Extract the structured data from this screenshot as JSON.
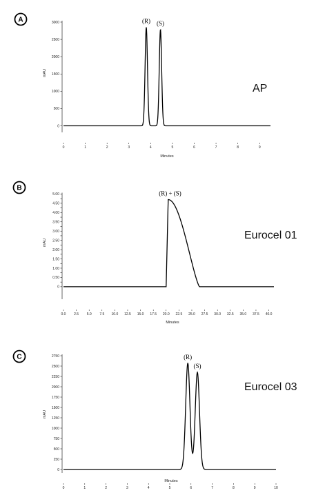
{
  "chart_data": [
    {
      "type": "line",
      "panel_letter": "A",
      "tag": "AP",
      "ylabel": "mAU",
      "xlabel": "Minutes",
      "xlim": [
        0,
        9.5
      ],
      "ylim": [
        -150,
        3200
      ],
      "xticks": [
        0,
        1,
        2,
        3,
        4,
        5,
        6,
        7,
        8,
        9
      ],
      "xtick_labels": [
        "0",
        "1",
        "2",
        "3",
        "4",
        "5",
        "6",
        "7",
        "8",
        "9"
      ],
      "yticks": [
        0,
        500,
        1000,
        1500,
        2000,
        2500,
        3000
      ],
      "ytick_labels": [
        "0",
        "500",
        "1000",
        "1500",
        "2000",
        "2500",
        "3000"
      ],
      "peaks": [
        {
          "label": "(R)",
          "x": 3.8,
          "y": 2850,
          "width": 0.055
        },
        {
          "label": "(S)",
          "x": 4.45,
          "y": 2780,
          "width": 0.055
        }
      ],
      "baseline": 0
    },
    {
      "type": "line",
      "panel_letter": "B",
      "tag": "Eurocel 01",
      "ylabel": "mAU",
      "xlabel": "Minutes",
      "xlim": [
        0,
        41
      ],
      "ylim": [
        -0.6,
        5.5
      ],
      "xticks": [
        0,
        2.5,
        5,
        7.5,
        10,
        12.5,
        15,
        17.5,
        20,
        22.5,
        25,
        27.5,
        30,
        32.5,
        35,
        37.5,
        40
      ],
      "xtick_labels": [
        "0.0",
        "2.5",
        "5.0",
        "7.5",
        "10.0",
        "12.5",
        "15.0",
        "17.5",
        "20.0",
        "22.5",
        "25.0",
        "27.5",
        "30.0",
        "32.5",
        "35.0",
        "37.5",
        "40.0"
      ],
      "yticks": [
        0,
        0.25,
        0.5,
        0.75,
        1.0,
        1.25,
        1.5,
        1.75,
        2.0,
        2.25,
        2.5,
        2.75,
        3.0,
        3.25,
        3.5,
        3.75,
        4.0,
        4.25,
        4.5,
        4.75,
        5.0
      ],
      "ytick_labels": [
        "0",
        "",
        "0.50",
        "",
        "1.00",
        "",
        "1.50",
        "",
        "2.00",
        "",
        "2.50",
        "",
        "3.00",
        "",
        "3.50",
        "",
        "4.00",
        "",
        "4.50",
        "",
        "5.00"
      ],
      "peaks": [
        {
          "label": "(R) + (S)",
          "x": 20.5,
          "y": 4.7,
          "shape": "tailing",
          "start": 20.0,
          "end": 26.5
        }
      ],
      "baseline": 0
    },
    {
      "type": "line",
      "panel_letter": "C",
      "tag": "Eurocel 03",
      "ylabel": "mAU",
      "xlabel": "Minutes",
      "xlim": [
        0,
        10
      ],
      "ylim": [
        -50,
        2850
      ],
      "xticks": [
        0,
        1,
        2,
        3,
        4,
        5,
        6,
        7,
        8,
        9,
        10
      ],
      "xtick_labels": [
        "0",
        "1",
        "2",
        "3",
        "4",
        "5",
        "6",
        "7",
        "8",
        "9",
        "10"
      ],
      "yticks": [
        0,
        250,
        500,
        750,
        1000,
        1250,
        1500,
        1750,
        2000,
        2250,
        2500,
        2750
      ],
      "ytick_labels": [
        "0",
        "250",
        "500",
        "750",
        "1000",
        "1250",
        "1500",
        "1750",
        "2000",
        "2250",
        "2500",
        "2750"
      ],
      "peaks": [
        {
          "label": "(R)",
          "x": 5.85,
          "y": 2570,
          "width": 0.1
        },
        {
          "label": "(S)",
          "x": 6.3,
          "y": 2350,
          "width": 0.1
        }
      ],
      "baseline": 0
    }
  ]
}
